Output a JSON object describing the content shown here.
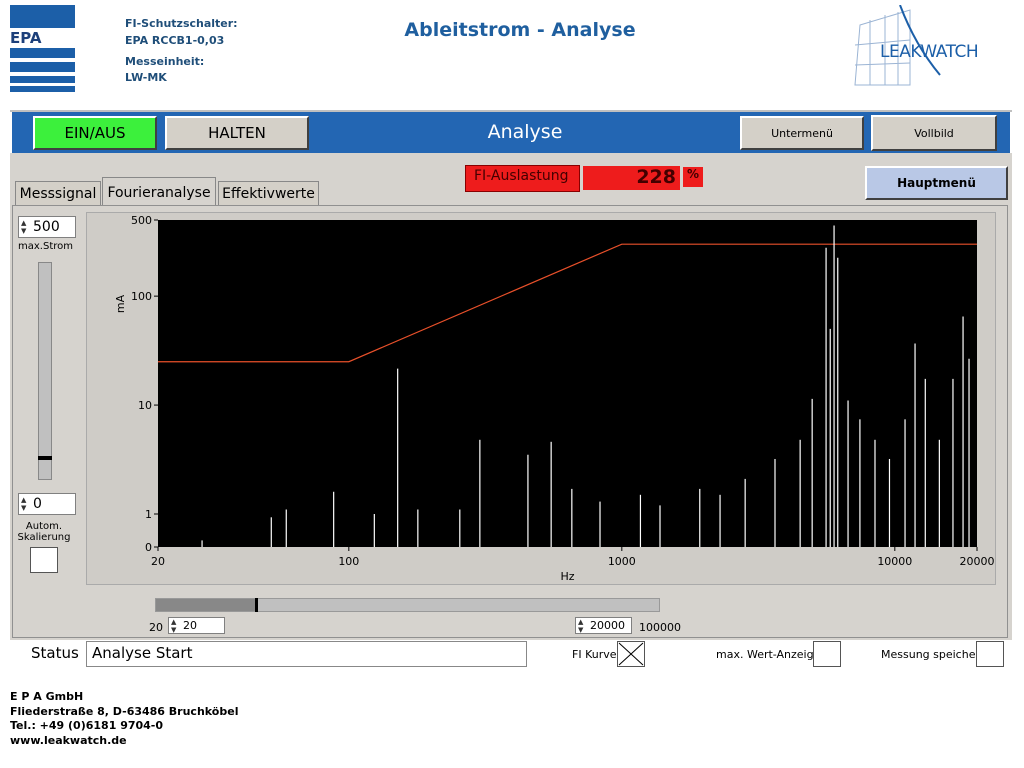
{
  "header": {
    "logo_left": "EPA",
    "fields": [
      "FI-Schutzschalter:",
      "EPA RCCB1-0,03",
      "Messeinheit:",
      "LW-MK"
    ],
    "title": "Ableitstrom - Analyse",
    "logo_right": "LEAKWATCH"
  },
  "toolbar": {
    "power": "EIN/AUS",
    "hold": "HALTEN",
    "title": "Analyse",
    "submenu": "Untermenü",
    "fullscreen": "Vollbild"
  },
  "tabs": [
    "Messsignal",
    "Fourieranalyse",
    "Effektivwerte"
  ],
  "load": {
    "label": "FI-Auslastung",
    "value": "228",
    "unit": "%"
  },
  "main_menu": "Hauptmenü",
  "left_controls": {
    "max_value": "500",
    "max_label": "max.Strom",
    "min_value": "0",
    "auto_label": "Autom. Skalierung"
  },
  "range": {
    "min_label": "20",
    "start": "20",
    "end": "20000",
    "max_label": "100000"
  },
  "status": {
    "label": "Status",
    "text": "Analyse Start"
  },
  "checkboxes": [
    {
      "label": "FI Kurve",
      "checked": true
    },
    {
      "label": "max. Wert-Anzeige",
      "checked": false
    },
    {
      "label": "Messung speichern",
      "checked": false
    }
  ],
  "footer": [
    "E P A  GmbH",
    "Fliederstraße 8, D-63486 Bruchköbel",
    "Tel.: +49 (0)6181 9704-0",
    "www.leakwatch.de"
  ],
  "chart_data": {
    "type": "line",
    "xlabel": "Hz",
    "ylabel": "mA",
    "xscale": "log",
    "yscale": "log",
    "xlim": [
      20,
      20000
    ],
    "xticks": [
      20,
      100,
      1000,
      10000,
      20000
    ],
    "ylim": [
      0,
      500
    ],
    "yticks": [
      0,
      1,
      10,
      100,
      500
    ],
    "background": "#000000",
    "series": [
      {
        "style": "line",
        "color": "#e8502a",
        "x": [
          20,
          100,
          1000,
          20000
        ],
        "values": [
          25,
          25,
          300,
          300
        ]
      },
      {
        "style": "spikes",
        "color": "#ffffff",
        "x": [
          29,
          52,
          59,
          88,
          124,
          151,
          179,
          255,
          302,
          453,
          551,
          656,
          832,
          1170,
          1380,
          1930,
          2290,
          2830,
          3640,
          4500,
          4980,
          5600,
          5800,
          5990,
          6180,
          6740,
          7450,
          8460,
          9560,
          10900,
          11860,
          12930,
          14560,
          16330,
          17780,
          18700
        ],
        "values": [
          0.2,
          0.9,
          1.1,
          1.6,
          1,
          21.6,
          1.1,
          1.1,
          4.8,
          3.5,
          4.6,
          1.7,
          1.3,
          1.5,
          1.2,
          1.7,
          1.5,
          2.1,
          3.2,
          4.8,
          11.4,
          278,
          50,
          445,
          225,
          11,
          7.4,
          4.8,
          3.2,
          7.4,
          36.7,
          17.4,
          4.8,
          17.4,
          65,
          26.6
        ]
      }
    ]
  }
}
